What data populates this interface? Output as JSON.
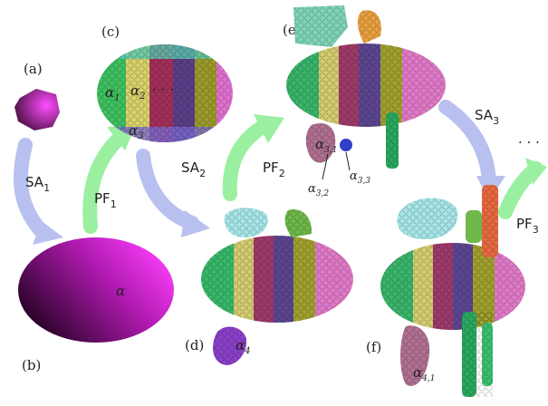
{
  "panels": {
    "a": "(a)",
    "b": "(b)",
    "c": "(c)",
    "d": "(d)",
    "e": "(e)",
    "f": "(f)"
  },
  "operations": {
    "sa1": "SA",
    "sa1_sub": "1",
    "pf1": "PF",
    "pf1_sub": "1",
    "sa2": "SA",
    "sa2_sub": "2",
    "pf2": "PF",
    "pf2_sub": "2",
    "sa3": "SA",
    "sa3_sub": "3",
    "pf3": "PF",
    "pf3_sub": "3"
  },
  "symbols": {
    "alpha": "α",
    "alpha_1": "α",
    "alpha_1_sub": "1",
    "alpha_2": "α",
    "alpha_2_sub": "2",
    "alpha_3": "α",
    "alpha_3_sub": "3",
    "alpha_3_1": "α",
    "alpha_3_1_sub": "3,1",
    "alpha_3_2": "α",
    "alpha_3_2_sub": "3,2",
    "alpha_3_3": "α",
    "alpha_3_3_sub": "3,3",
    "alpha_4": "α",
    "alpha_4_sub": "4",
    "alpha_4_1": "α",
    "alpha_4_1_sub": "4,1",
    "dots_c": "· · ·",
    "ellipsis": "· · ·"
  },
  "colors": {
    "shape_light": "#ff4dff",
    "shape_dark": "#3a0a30",
    "arrow_sa": "#b8c0f0",
    "arrow_pf": "#9af0a0"
  }
}
